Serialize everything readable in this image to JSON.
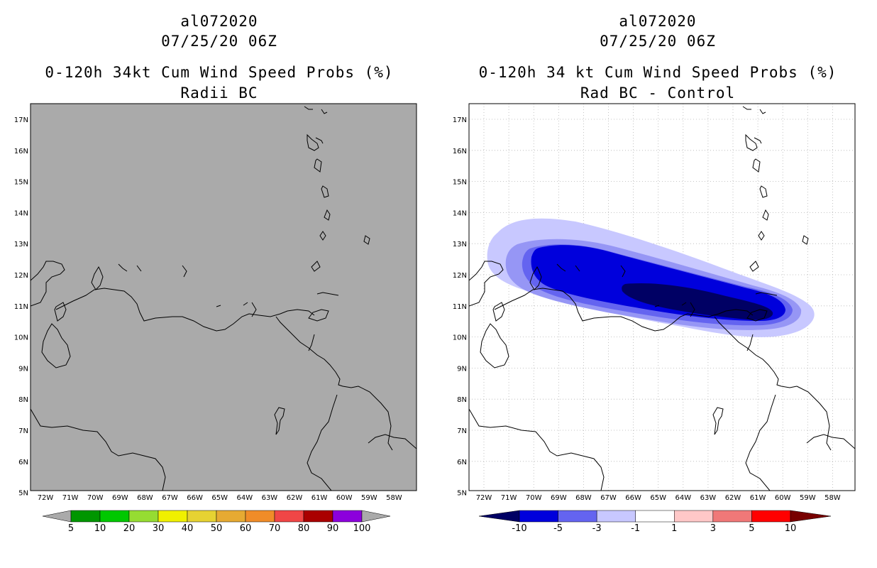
{
  "left": {
    "storm_id": "al072020",
    "datetime": "07/25/20 06Z",
    "title": "0-120h 34kt Cum Wind Speed Probs (%)",
    "subtitle": "Radii BC",
    "map_background": "#aaaaaa",
    "colorbar": {
      "labels": [
        "5",
        "10",
        "20",
        "30",
        "40",
        "50",
        "60",
        "70",
        "80",
        "90",
        "100"
      ],
      "colors": [
        "#009600",
        "#00c800",
        "#96dc32",
        "#f0f000",
        "#e6d232",
        "#e6aa32",
        "#f08c28",
        "#f04646",
        "#aa0000",
        "#8c00dc"
      ],
      "end_color": "#aaaaaa"
    }
  },
  "right": {
    "storm_id": "al072020",
    "datetime": "07/25/20 06Z",
    "title": "0-120h 34 kt Cum Wind Speed Probs (%)",
    "subtitle": "Rad BC - Control",
    "map_background": "#ffffff",
    "colorbar": {
      "labels": [
        "-10",
        "-5",
        "-3",
        "-1",
        "1",
        "3",
        "5",
        "10"
      ],
      "colors": [
        "#0000dc",
        "#6464f0",
        "#c8c8ff",
        "#ffffff",
        "#ffc8c8",
        "#f07878",
        "#ff0000"
      ],
      "low_color": "#000064",
      "high_color": "#780000"
    },
    "contour_colors": [
      "#c8c8ff",
      "#9696f5",
      "#6464f0",
      "#0000dc",
      "#000064"
    ]
  },
  "axes": {
    "lat_labels": [
      "17N",
      "16N",
      "15N",
      "14N",
      "13N",
      "12N",
      "11N",
      "10N",
      "9N",
      "8N",
      "7N",
      "6N",
      "5N"
    ],
    "lon_labels": [
      "72W",
      "71W",
      "70W",
      "69W",
      "68W",
      "67W",
      "66W",
      "65W",
      "64W",
      "63W",
      "62W",
      "61W",
      "60W",
      "59W",
      "58W"
    ]
  }
}
